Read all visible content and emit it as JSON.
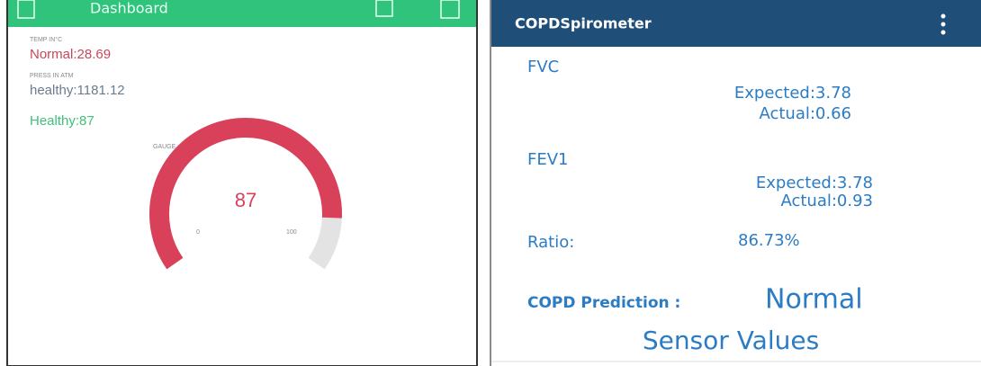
{
  "left": {
    "header": "Dashboard",
    "temp_label": "TEMP IN°C",
    "temp_value": "Normal:28.69",
    "press_label": "PRESS IN ATM",
    "press_value": "healthy:1181.12",
    "status": "Healthy:87",
    "gauge": {
      "label": "GAUGE",
      "value": 87,
      "min": 0,
      "max": 100,
      "color": "#d9415a",
      "track_color": "#e3e3e3"
    }
  },
  "right": {
    "header": "COPDSpirometer",
    "fvc": {
      "title": "FVC",
      "expected": "Expected:3.78",
      "actual": "Actual:0.66"
    },
    "fev1": {
      "title": "FEV1",
      "expected": "Expected:3.78",
      "actual": "Actual:0.93"
    },
    "ratio_label": "Ratio:",
    "ratio_value": "86.73%",
    "prediction_label": "COPD Prediction :",
    "prediction_value": "Normal",
    "footer": "Sensor Values"
  }
}
